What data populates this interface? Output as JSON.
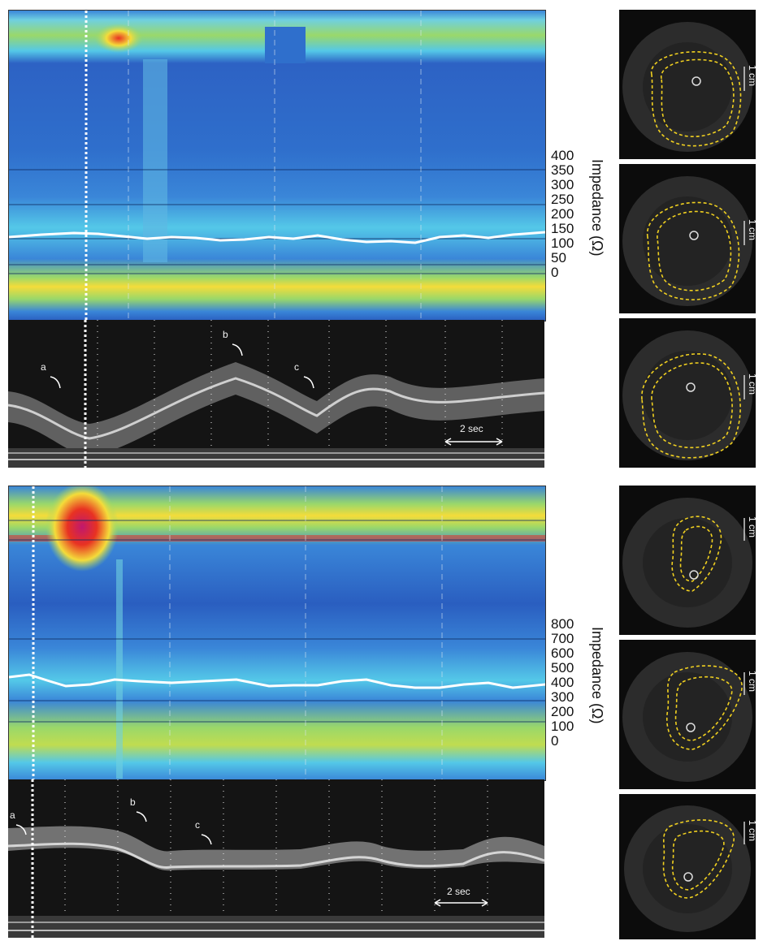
{
  "chart_data": [
    {
      "type": "heatmap",
      "ylabel": "Impedance (Ω)",
      "scale_ticks": [
        "400",
        "350",
        "300",
        "250",
        "200",
        "150",
        "100",
        "50",
        "0"
      ],
      "mmode_labels": [
        "a",
        "b",
        "c"
      ],
      "time_bar_label": "2 sec",
      "ultrasound_scale": [
        "1 cm",
        "1 cm",
        "1 cm"
      ]
    },
    {
      "type": "heatmap",
      "ylabel": "Impedance (Ω)",
      "scale_ticks": [
        "800",
        "700",
        "600",
        "500",
        "400",
        "300",
        "200",
        "100",
        "0"
      ],
      "mmode_labels": [
        "a",
        "b",
        "c"
      ],
      "time_bar_label": "2 sec",
      "ultrasound_scale": [
        "1 cm",
        "1 cm",
        "1 cm"
      ]
    }
  ],
  "colors": {
    "low": "#1f4fb4",
    "mid_blue": "#3a86d8",
    "cyan": "#54c8e8",
    "green": "#9ad86a",
    "yellow": "#f4dc3a",
    "red": "#e83222",
    "magenta": "#c0186e",
    "contour": "#f0d020",
    "trace": "#ffffff"
  }
}
